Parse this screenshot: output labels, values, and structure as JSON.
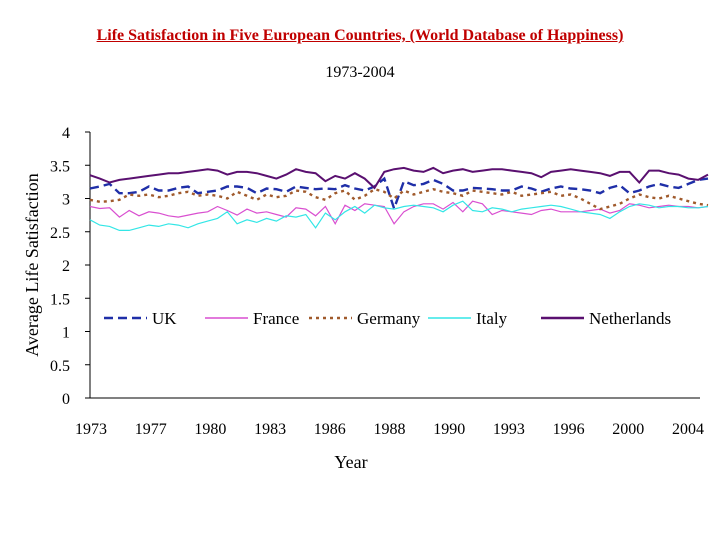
{
  "chart_data": {
    "type": "line",
    "title": "Life Satisfaction in Five European Countries, (World Database of Happiness)",
    "subtitle": "1973-2004",
    "xlabel": "Year",
    "ylabel": "Average Life Satisfaction",
    "ylim": [
      0,
      4
    ],
    "yticks": [
      "0",
      "0.5",
      "1",
      "1.5",
      "2",
      "2.5",
      "3",
      "3.5",
      "4"
    ],
    "xticks": [
      "1973",
      "1977",
      "1980",
      "1983",
      "1986",
      "1988",
      "1990",
      "1993",
      "1996",
      "2000",
      "2004"
    ],
    "grid": false,
    "legend": "inside-center",
    "series": [
      {
        "name": "UK",
        "color": "#1f2fa8",
        "style": "dashed",
        "values": [
          3.15,
          3.18,
          3.22,
          3.08,
          3.08,
          3.1,
          3.18,
          3.12,
          3.12,
          3.16,
          3.18,
          3.08,
          3.1,
          3.12,
          3.18,
          3.18,
          3.16,
          3.08,
          3.15,
          3.14,
          3.1,
          3.18,
          3.16,
          3.14,
          3.15,
          3.14,
          3.2,
          3.15,
          3.12,
          3.18,
          3.3,
          2.85,
          3.26,
          3.2,
          3.22,
          3.28,
          3.22,
          3.12,
          3.12,
          3.16,
          3.15,
          3.14,
          3.12,
          3.12,
          3.18,
          3.15,
          3.1,
          3.15,
          3.18,
          3.15,
          3.14,
          3.12,
          3.08,
          3.16,
          3.2,
          3.08,
          3.12,
          3.18,
          3.22,
          3.18,
          3.16,
          3.22,
          3.28,
          3.3
        ]
      },
      {
        "name": "France",
        "color": "#d94fd0",
        "style": "solid",
        "values": [
          2.88,
          2.85,
          2.86,
          2.72,
          2.82,
          2.74,
          2.8,
          2.78,
          2.74,
          2.72,
          2.75,
          2.78,
          2.8,
          2.88,
          2.82,
          2.75,
          2.84,
          2.78,
          2.8,
          2.76,
          2.72,
          2.86,
          2.84,
          2.74,
          2.88,
          2.62,
          2.9,
          2.82,
          2.92,
          2.9,
          2.88,
          2.62,
          2.8,
          2.88,
          2.92,
          2.92,
          2.84,
          2.94,
          2.8,
          2.96,
          2.92,
          2.76,
          2.82,
          2.8,
          2.78,
          2.76,
          2.82,
          2.84,
          2.8,
          2.8,
          2.8,
          2.82,
          2.84,
          2.78,
          2.82,
          2.92,
          2.9,
          2.86,
          2.88,
          2.9,
          2.88,
          2.88,
          2.86,
          2.88
        ]
      },
      {
        "name": "Germany",
        "color": "#a05a2c",
        "style": "dotted",
        "values": [
          2.98,
          2.95,
          2.96,
          2.98,
          3.06,
          3.04,
          3.06,
          3.02,
          3.04,
          3.08,
          3.1,
          3.04,
          3.06,
          3.04,
          3.0,
          3.1,
          3.04,
          2.98,
          3.06,
          3.02,
          3.04,
          3.12,
          3.1,
          3.02,
          2.98,
          3.08,
          3.12,
          2.98,
          3.04,
          3.14,
          3.1,
          3.0,
          3.12,
          3.06,
          3.1,
          3.14,
          3.1,
          3.08,
          3.04,
          3.12,
          3.1,
          3.08,
          3.06,
          3.1,
          3.04,
          3.06,
          3.08,
          3.1,
          3.04,
          3.06,
          3.0,
          2.92,
          2.84,
          2.88,
          2.92,
          3.0,
          3.06,
          3.02,
          3.0,
          3.04,
          3.0,
          2.96,
          2.92,
          2.9
        ]
      },
      {
        "name": "Italy",
        "color": "#33e6e6",
        "style": "solid",
        "values": [
          2.68,
          2.6,
          2.58,
          2.52,
          2.52,
          2.56,
          2.6,
          2.58,
          2.62,
          2.6,
          2.56,
          2.62,
          2.66,
          2.7,
          2.8,
          2.62,
          2.68,
          2.64,
          2.7,
          2.66,
          2.74,
          2.72,
          2.76,
          2.56,
          2.78,
          2.68,
          2.8,
          2.88,
          2.78,
          2.9,
          2.86,
          2.84,
          2.88,
          2.9,
          2.88,
          2.86,
          2.8,
          2.9,
          2.96,
          2.82,
          2.8,
          2.86,
          2.84,
          2.8,
          2.84,
          2.86,
          2.88,
          2.9,
          2.88,
          2.84,
          2.8,
          2.78,
          2.76,
          2.7,
          2.8,
          2.88,
          2.92,
          2.9,
          2.86,
          2.88,
          2.88,
          2.86,
          2.86,
          2.88
        ]
      },
      {
        "name": "Netherlands",
        "color": "#5a1070",
        "style": "solid",
        "values": [
          3.35,
          3.3,
          3.24,
          3.28,
          3.3,
          3.32,
          3.34,
          3.36,
          3.38,
          3.38,
          3.4,
          3.42,
          3.44,
          3.42,
          3.36,
          3.4,
          3.4,
          3.38,
          3.34,
          3.3,
          3.36,
          3.44,
          3.4,
          3.38,
          3.26,
          3.34,
          3.3,
          3.38,
          3.3,
          3.16,
          3.4,
          3.44,
          3.46,
          3.42,
          3.4,
          3.46,
          3.38,
          3.42,
          3.44,
          3.4,
          3.42,
          3.44,
          3.44,
          3.42,
          3.4,
          3.38,
          3.32,
          3.4,
          3.42,
          3.44,
          3.42,
          3.4,
          3.38,
          3.34,
          3.4,
          3.4,
          3.24,
          3.42,
          3.42,
          3.38,
          3.36,
          3.3,
          3.28,
          3.36
        ]
      }
    ]
  }
}
